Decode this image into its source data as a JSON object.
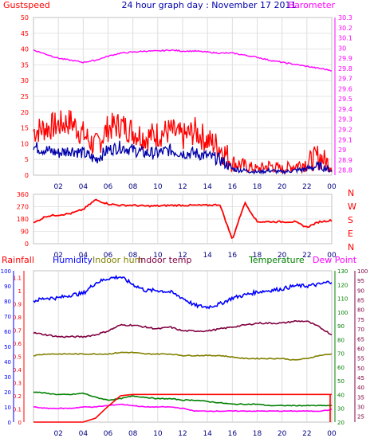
{
  "title": "24 hour graph day : November 17 2011",
  "x_ticks": [
    "02",
    "04",
    "06",
    "08",
    "10",
    "12",
    "14",
    "16",
    "18",
    "20",
    "22",
    "00"
  ],
  "colors": {
    "gust": "#ff0000",
    "wind": "#0000aa",
    "baro": "#ff00ff",
    "dir": "#ff0000",
    "humidity": "#0000ff",
    "indoor_hum": "#808000",
    "indoor_temp": "#800040",
    "temperature": "#008000",
    "dewpoint": "#ff00ff",
    "rainfall": "#ff0000",
    "grid": "#aaaaaa",
    "axis_text": "#000080"
  },
  "panels": {
    "wind": {
      "left_label": "Gustspeed",
      "right_label": "Barometer",
      "left_ticks": [
        "0",
        "5",
        "10",
        "15",
        "20",
        "25",
        "30",
        "35",
        "40",
        "45",
        "50"
      ],
      "right_ticks": [
        "28.8",
        "28.9",
        "29",
        "29.1",
        "29.2",
        "29.3",
        "29.4",
        "29.5",
        "29.6",
        "29.7",
        "29.8",
        "29.9",
        "30",
        "30.1",
        "30.2",
        "30.3"
      ]
    },
    "direction": {
      "left_ticks": [
        "0",
        "90",
        "180",
        "270",
        "360"
      ],
      "right_labels": [
        "N",
        "W",
        "S",
        "E",
        "N"
      ]
    },
    "climate": {
      "labels": [
        "Rainfall",
        "Humidity",
        "Indoor hum",
        "Indoor temp",
        "Temperature",
        "Dew Point"
      ],
      "rain_ticks": [
        "0",
        "0.1",
        "0.2",
        "0.3",
        "0.4",
        "0.5",
        "0.6",
        "0.7",
        "0.8",
        "0.9",
        "1",
        "1.1"
      ],
      "hum_ticks": [
        "0",
        "10",
        "20",
        "30",
        "40",
        "50",
        "60",
        "70",
        "80",
        "90",
        "100"
      ],
      "temp_ticks_green": [
        "20",
        "30",
        "40",
        "50",
        "60",
        "70",
        "80",
        "90",
        "100",
        "110",
        "120",
        "130"
      ],
      "temp_ticks_maroon": [
        "25",
        "30",
        "35",
        "40",
        "45",
        "50",
        "55",
        "60",
        "65",
        "70",
        "75",
        "80",
        "85",
        "90",
        "95",
        "100"
      ]
    }
  },
  "chart_data": [
    {
      "type": "line",
      "title": "24 hour graph day : November 17 2011",
      "xlabel": "",
      "ylabel": "Gustspeed",
      "ylabel_right": "Barometer",
      "x": [
        "00",
        "01",
        "02",
        "03",
        "04",
        "05",
        "06",
        "07",
        "08",
        "09",
        "10",
        "11",
        "12",
        "13",
        "14",
        "15",
        "16",
        "17",
        "18",
        "19",
        "20",
        "21",
        "22",
        "23",
        "00"
      ],
      "ylim": [
        0,
        50
      ],
      "ylim_right": [
        28.75,
        30.3
      ],
      "series": [
        {
          "name": "Gustspeed",
          "axis": "left",
          "values": [
            14,
            15,
            16,
            17,
            13,
            9,
            15,
            16,
            14,
            12,
            13,
            14,
            12,
            14,
            11,
            9,
            4,
            3,
            2,
            3,
            2,
            3,
            4,
            6,
            3
          ]
        },
        {
          "name": "Windspeed",
          "axis": "left",
          "values": [
            9,
            8,
            7,
            8,
            7,
            5,
            8,
            9,
            8,
            7,
            7,
            8,
            7,
            7,
            6,
            5,
            2,
            1.5,
            1,
            1.5,
            1,
            1.5,
            2,
            3,
            1.5
          ]
        },
        {
          "name": "Barometer",
          "axis": "right",
          "values": [
            29.98,
            29.94,
            29.9,
            29.88,
            29.86,
            29.88,
            29.92,
            29.95,
            29.96,
            29.97,
            29.97,
            29.98,
            29.97,
            29.97,
            29.96,
            29.95,
            29.95,
            29.93,
            29.91,
            29.88,
            29.86,
            29.84,
            29.82,
            29.8,
            29.78
          ]
        }
      ]
    },
    {
      "type": "line",
      "ylabel": "",
      "ylim": [
        0,
        360
      ],
      "x": [
        "00",
        "01",
        "02",
        "03",
        "04",
        "05",
        "06",
        "07",
        "08",
        "09",
        "10",
        "11",
        "12",
        "13",
        "14",
        "15",
        "16",
        "17",
        "18",
        "19",
        "20",
        "21",
        "22",
        "23",
        "00"
      ],
      "series": [
        {
          "name": "Wind direction",
          "values": [
            150,
            200,
            210,
            220,
            250,
            320,
            290,
            280,
            280,
            275,
            275,
            280,
            280,
            280,
            280,
            285,
            30,
            300,
            160,
            160,
            160,
            160,
            120,
            160,
            170
          ]
        }
      ]
    },
    {
      "type": "line",
      "x": [
        "00",
        "01",
        "02",
        "03",
        "04",
        "05",
        "06",
        "07",
        "08",
        "09",
        "10",
        "11",
        "12",
        "13",
        "14",
        "15",
        "16",
        "17",
        "18",
        "19",
        "20",
        "21",
        "22",
        "23",
        "00"
      ],
      "series": [
        {
          "name": "Humidity",
          "axis": "humidity",
          "ylim": [
            0,
            100
          ],
          "values": [
            80,
            82,
            82,
            84,
            85,
            92,
            95,
            96,
            91,
            87,
            87,
            86,
            82,
            77,
            76,
            78,
            82,
            84,
            86,
            87,
            88,
            90,
            90,
            91,
            93
          ]
        },
        {
          "name": "Indoor hum",
          "axis": "humidity",
          "ylim": [
            0,
            100
          ],
          "values": [
            44,
            45,
            45,
            45,
            45,
            45,
            45,
            46,
            46,
            45,
            45,
            45,
            44,
            44,
            44,
            44,
            43,
            42,
            42,
            42,
            42,
            41,
            42,
            44,
            45
          ]
        },
        {
          "name": "Indoor temp",
          "axis": "maroon_temp",
          "ylim": [
            22,
            100
          ],
          "values": [
            68,
            67,
            66,
            66,
            66,
            67,
            69,
            72,
            72,
            71,
            70,
            71,
            69,
            69,
            69,
            70,
            71,
            72,
            73,
            73,
            73,
            74,
            74,
            71,
            67
          ]
        },
        {
          "name": "Temperature",
          "axis": "green_temp",
          "ylim": [
            20,
            130
          ],
          "values": [
            42,
            41,
            40,
            40,
            41,
            38,
            36,
            37,
            39,
            38,
            37,
            37,
            36,
            36,
            35,
            34,
            33,
            33,
            33,
            32,
            32,
            32,
            32,
            32,
            32
          ]
        },
        {
          "name": "Dew Point",
          "axis": "green_temp",
          "ylim": [
            20,
            130
          ],
          "values": [
            31,
            30,
            30,
            30,
            31,
            31,
            32,
            33,
            32,
            31,
            31,
            31,
            30,
            28,
            28,
            28,
            28,
            28,
            28,
            28,
            28,
            28,
            28,
            28,
            29
          ]
        },
        {
          "name": "Rainfall",
          "axis": "rain",
          "ylim": [
            0,
            1.15
          ],
          "values": [
            0,
            0,
            0,
            0,
            0,
            0.03,
            0.12,
            0.2,
            0.21,
            0.21,
            0.21,
            0.21,
            0.21,
            0.21,
            0.21,
            0.21,
            0.21,
            0.21,
            0.21,
            0.21,
            0.21,
            0.21,
            0.21,
            0.21,
            0.21
          ]
        }
      ]
    }
  ]
}
